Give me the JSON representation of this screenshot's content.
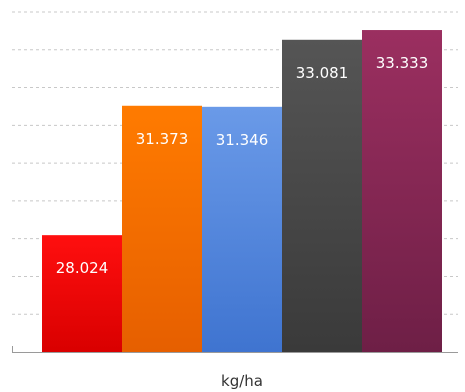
{
  "chart_data": {
    "type": "bar",
    "categories": [
      "",
      "",
      "",
      "",
      ""
    ],
    "values": [
      28.024,
      31.373,
      31.346,
      33.081,
      33.333
    ],
    "value_labels": [
      "28.024",
      "31.373",
      "31.346",
      "33.081",
      "33.333"
    ],
    "colors": [
      [
        "#ff0f0f",
        "#d90000"
      ],
      [
        "#ff7b00",
        "#e65f00"
      ],
      [
        "#6a9ae8",
        "#3f74d0"
      ],
      [
        "#555555",
        "#3a3a3a"
      ],
      [
        "#9b2f60",
        "#6e1f46"
      ]
    ],
    "xlabel": "kg/ha",
    "ylim": [
      25,
      33.8
    ],
    "grid": true,
    "legend": "none"
  }
}
